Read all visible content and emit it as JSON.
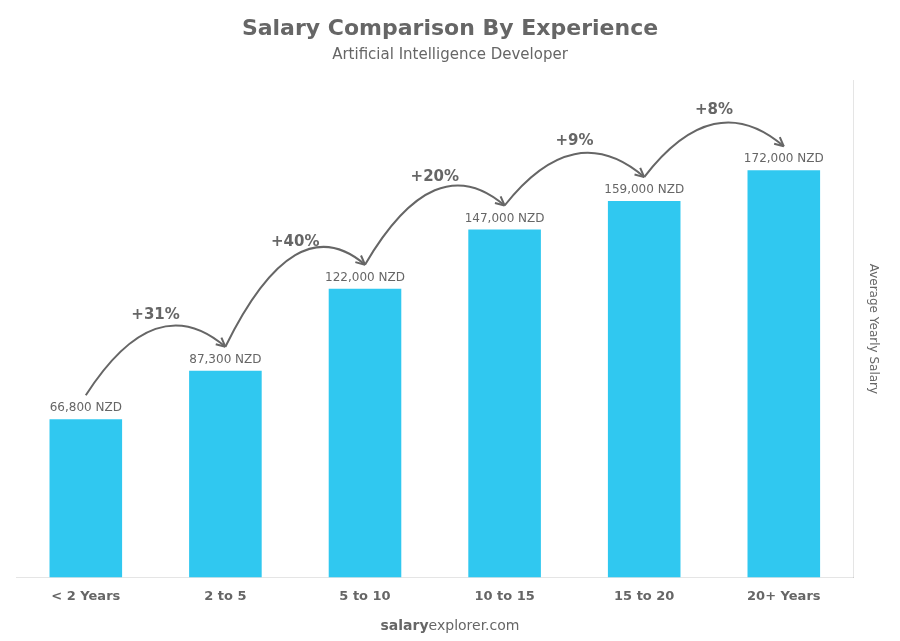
{
  "chart_data": {
    "type": "bar",
    "title": "Salary Comparison By Experience",
    "subtitle": "Artificial Intelligence Developer",
    "categories": [
      "< 2 Years",
      "2 to 5",
      "5 to 10",
      "10 to 15",
      "15 to 20",
      "20+ Years"
    ],
    "values": [
      66800,
      87300,
      122000,
      147000,
      159000,
      172000
    ],
    "value_labels": [
      "66,800 NZD",
      "87,300 NZD",
      "122,000 NZD",
      "147,000 NZD",
      "159,000 NZD",
      "172,000 NZD"
    ],
    "data_labels": true,
    "annotations": [
      "+31%",
      "+40%",
      "+20%",
      "+9%",
      "+8%"
    ],
    "ylabel": "Average Yearly Salary",
    "watermark": [
      "salary",
      "explorer.com"
    ],
    "color": "#30c8f0",
    "ylim": [
      0,
      210000
    ],
    "grid": false,
    "tick_labels": "x"
  }
}
